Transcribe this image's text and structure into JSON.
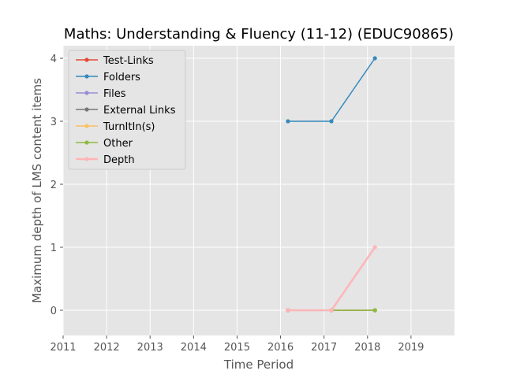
{
  "chart_data": {
    "type": "line",
    "title": "Maths: Understanding & Fluency (11-12) (EDUC90865)",
    "xlabel": "Time Period",
    "ylabel": "Maximum depth of LMS content items",
    "xlim": [
      2011,
      2020
    ],
    "ylim": [
      -0.4,
      4.2
    ],
    "x_ticks": [
      2011,
      2012,
      2013,
      2014,
      2015,
      2016,
      2017,
      2018,
      2019
    ],
    "y_ticks": [
      0,
      1,
      2,
      3,
      4
    ],
    "grid": true,
    "legend_position": "top-left",
    "series": [
      {
        "name": "Test-Links",
        "color": "#E24A33",
        "x": [
          2016.17,
          2017.17,
          2018.17
        ],
        "y": [
          0,
          0,
          0
        ],
        "width": 1.5
      },
      {
        "name": "Folders",
        "color": "#348ABD",
        "x": [
          2016.17,
          2017.17,
          2018.17
        ],
        "y": [
          3,
          3,
          4
        ],
        "width": 1.5
      },
      {
        "name": "Files",
        "color": "#988ED5",
        "x": [
          2016.17,
          2017.17,
          2018.17
        ],
        "y": [
          0,
          0,
          0
        ],
        "width": 1.5
      },
      {
        "name": "External Links",
        "color": "#777777",
        "x": [
          2016.17,
          2017.17,
          2018.17
        ],
        "y": [
          0,
          0,
          0
        ],
        "width": 1.5
      },
      {
        "name": "TurnItIn(s)",
        "color": "#FBC15E",
        "x": [
          2016.17,
          2017.17,
          2018.17
        ],
        "y": [
          0,
          0,
          0
        ],
        "width": 1.5
      },
      {
        "name": "Other",
        "color": "#8EBA42",
        "x": [
          2016.17,
          2017.17,
          2018.17
        ],
        "y": [
          0,
          0,
          0
        ],
        "width": 1.5
      },
      {
        "name": "Depth",
        "color": "#FFB5B8",
        "x": [
          2016.17,
          2017.17,
          2018.17
        ],
        "y": [
          0,
          0,
          1
        ],
        "width": 2.5
      }
    ]
  }
}
